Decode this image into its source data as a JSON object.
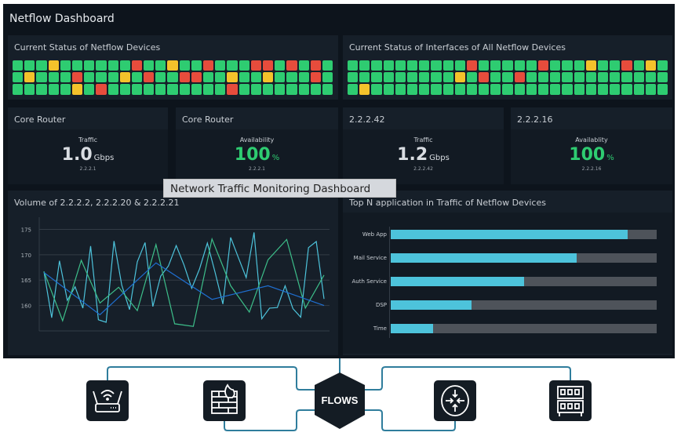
{
  "header": {
    "title": "Netflow Dashboard"
  },
  "colors": {
    "green": "#2ecc71",
    "red": "#e74c3c",
    "yellow": "#f4c22b",
    "cyan": "#4dc3db",
    "blue": "#1f6fd1",
    "teal_green": "#3dbf8a"
  },
  "device_status": {
    "title": "Current Status of Netflow Devices",
    "rows": [
      "GGGYGGGGGGRGGYGGRGGGRRGRGRG",
      "GYGGGRGGGYGRGGRRGGYGGYGGGRG",
      "GGGGGYGRGGGGGGGGGGRGGGGGGGG"
    ]
  },
  "interface_status": {
    "title": "Current Status of Interfaces of All Netflow Devices",
    "rows": [
      "GGGGGGGGGGRGGGGGRGGGYGGRGYG",
      "GGGGGGGGGYGRGGRGGGGGGGGGGGG",
      "GYGGGGGGGGGGGGGGGGGGGGGGGGG"
    ]
  },
  "kpis": [
    {
      "title": "Core Router",
      "label": "Traffic",
      "value": "1.0",
      "unit": "Gbps",
      "sub": "2.2.2.1",
      "accent": false
    },
    {
      "title": "Core Router",
      "label": "Availability",
      "value": "100",
      "unit": "%",
      "sub": "2.2.2.1",
      "accent": true
    },
    {
      "title": "2.2.2.42",
      "label": "Traffic",
      "value": "1.2",
      "unit": "Gbps",
      "sub": "2.2.2.42",
      "accent": false
    },
    {
      "title": "2.2.2.16",
      "label": "Availablity",
      "value": "100",
      "unit": "%",
      "sub": "2.2.2.16",
      "accent": true
    }
  ],
  "tooltip": "Network Traffic Monitoring Dashboard",
  "chart_data": [
    {
      "type": "line",
      "title": "Volume of 2.2.2.2, 2.2.2.20 & 2.2.2.21",
      "ylim": [
        155,
        176
      ],
      "yticks": [
        160,
        165,
        170,
        175
      ],
      "grid": true,
      "series": [
        {
          "color": "#4dc3db",
          "x": [
            0,
            1,
            2,
            3,
            4,
            5,
            6,
            7,
            8,
            9,
            10,
            11,
            12,
            13,
            14,
            15,
            16,
            17,
            18,
            19,
            20,
            21,
            22,
            23,
            24,
            25,
            26,
            27,
            28,
            29,
            30,
            31,
            32,
            33,
            34,
            35,
            36
          ],
          "y": [
            166.7,
            157.6,
            168.8,
            161,
            163.7,
            159.5,
            171.7,
            157.2,
            156.7,
            172.7,
            164,
            159.2,
            168.6,
            172.4,
            159.8,
            165.8,
            167.8,
            171.8,
            168,
            163.4,
            167.2,
            172.3,
            166.5,
            160.3,
            173.4,
            169.4,
            165.5,
            174.4,
            157.4,
            159.5,
            159.6,
            163.9,
            159.4,
            157.7,
            171.4,
            172.6,
            161.3
          ]
        },
        {
          "color": "#3dbf8a",
          "x": [
            0,
            2.4,
            4.8,
            7.2,
            9.6,
            12,
            14.4,
            16.8,
            19.2,
            21.6,
            24,
            26.4,
            28.8,
            31.2,
            33.6,
            36
          ],
          "y": [
            166.7,
            157,
            168.9,
            160.5,
            163.6,
            159,
            172,
            156.4,
            155.9,
            173.1,
            163.9,
            158.7,
            169,
            173,
            159.5,
            166
          ]
        },
        {
          "color": "#1f6fd1",
          "x": [
            0,
            7.2,
            14.4,
            21.6,
            28.8,
            36
          ],
          "y": [
            166.5,
            158.2,
            168.4,
            161.2,
            163.9,
            160
          ]
        }
      ]
    },
    {
      "type": "bar",
      "orientation": "horizontal",
      "title": "Top N application in Traffic of Netflow Devices",
      "categories": [
        "Web App",
        "Mail Service",
        "Auth Service",
        "DSP",
        "Time"
      ],
      "values": [
        89,
        70,
        50,
        30.5,
        16
      ],
      "ylim": [
        0,
        100
      ]
    }
  ],
  "diagram": {
    "center_label": "FLOWS",
    "nodes": [
      "wifi-router-icon",
      "firewall-icon",
      "router-icon",
      "server-rack-icon"
    ]
  }
}
